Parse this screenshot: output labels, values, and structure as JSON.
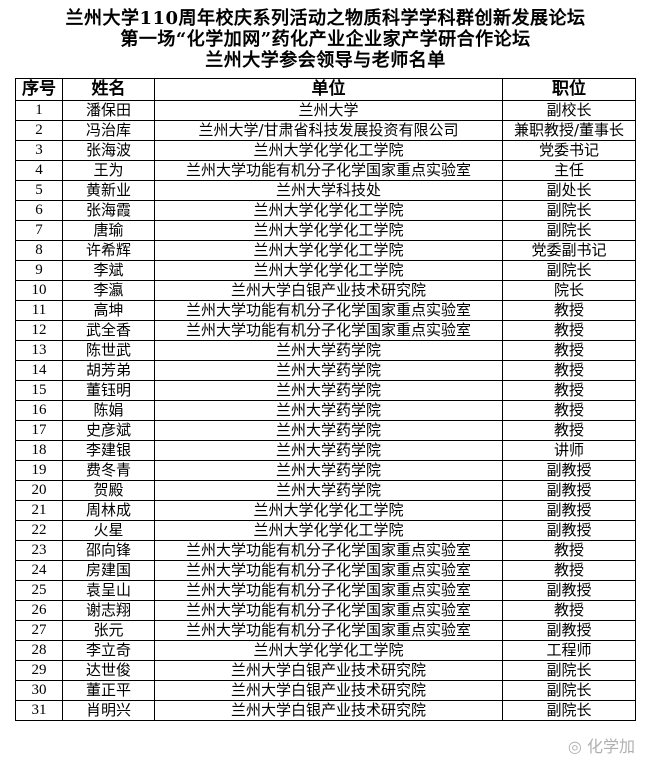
{
  "titles": [
    "兰州大学110周年校庆系列活动之物质科学学科群创新发展论坛",
    "第一场“化学加网”药化产业企业家产学研合作论坛",
    "兰州大学参会领导与老师名单"
  ],
  "table": {
    "headers": [
      "序号",
      "姓名",
      "单位",
      "职位"
    ],
    "rows": [
      [
        "1",
        "潘保田",
        "兰州大学",
        "副校长"
      ],
      [
        "2",
        "冯治库",
        "兰州大学/甘肃省科技发展投资有限公司",
        "兼职教授/董事长"
      ],
      [
        "3",
        "张海波",
        "兰州大学化学化工学院",
        "党委书记"
      ],
      [
        "4",
        "王为",
        "兰州大学功能有机分子化学国家重点实验室",
        "主任"
      ],
      [
        "5",
        "黄新业",
        "兰州大学科技处",
        "副处长"
      ],
      [
        "6",
        "张海霞",
        "兰州大学化学化工学院",
        "副院长"
      ],
      [
        "7",
        "唐瑜",
        "兰州大学化学化工学院",
        "副院长"
      ],
      [
        "8",
        "许希辉",
        "兰州大学化学化工学院",
        "党委副书记"
      ],
      [
        "9",
        "李斌",
        "兰州大学化学化工学院",
        "副院长"
      ],
      [
        "10",
        "李瀛",
        "兰州大学白银产业技术研究院",
        "院长"
      ],
      [
        "11",
        "高坤",
        "兰州大学功能有机分子化学国家重点实验室",
        "教授"
      ],
      [
        "12",
        "武全香",
        "兰州大学功能有机分子化学国家重点实验室",
        "教授"
      ],
      [
        "13",
        "陈世武",
        "兰州大学药学院",
        "教授"
      ],
      [
        "14",
        "胡芳弟",
        "兰州大学药学院",
        "教授"
      ],
      [
        "15",
        "董钰明",
        "兰州大学药学院",
        "教授"
      ],
      [
        "16",
        "陈娟",
        "兰州大学药学院",
        "教授"
      ],
      [
        "17",
        "史彦斌",
        "兰州大学药学院",
        "教授"
      ],
      [
        "18",
        "李建银",
        "兰州大学药学院",
        "讲师"
      ],
      [
        "19",
        "费冬青",
        "兰州大学药学院",
        "副教授"
      ],
      [
        "20",
        "贺殿",
        "兰州大学药学院",
        "副教授"
      ],
      [
        "21",
        "周林成",
        "兰州大学化学化工学院",
        "副教授"
      ],
      [
        "22",
        "火星",
        "兰州大学化学化工学院",
        "副教授"
      ],
      [
        "23",
        "邵向锋",
        "兰州大学功能有机分子化学国家重点实验室",
        "教授"
      ],
      [
        "24",
        "房建国",
        "兰州大学功能有机分子化学国家重点实验室",
        "教授"
      ],
      [
        "25",
        "袁呈山",
        "兰州大学功能有机分子化学国家重点实验室",
        "副教授"
      ],
      [
        "26",
        "谢志翔",
        "兰州大学功能有机分子化学国家重点实验室",
        "教授"
      ],
      [
        "27",
        "张元",
        "兰州大学功能有机分子化学国家重点实验室",
        "副教授"
      ],
      [
        "28",
        "李立奇",
        "兰州大学化学化工学院",
        "工程师"
      ],
      [
        "29",
        "达世俊",
        "兰州大学白银产业技术研究院",
        "副院长"
      ],
      [
        "30",
        "董正平",
        "兰州大学白银产业技术研究院",
        "副院长"
      ],
      [
        "31",
        "肖明兴",
        "兰州大学白银产业技术研究院",
        "副院长"
      ]
    ]
  },
  "watermark": "化学加"
}
